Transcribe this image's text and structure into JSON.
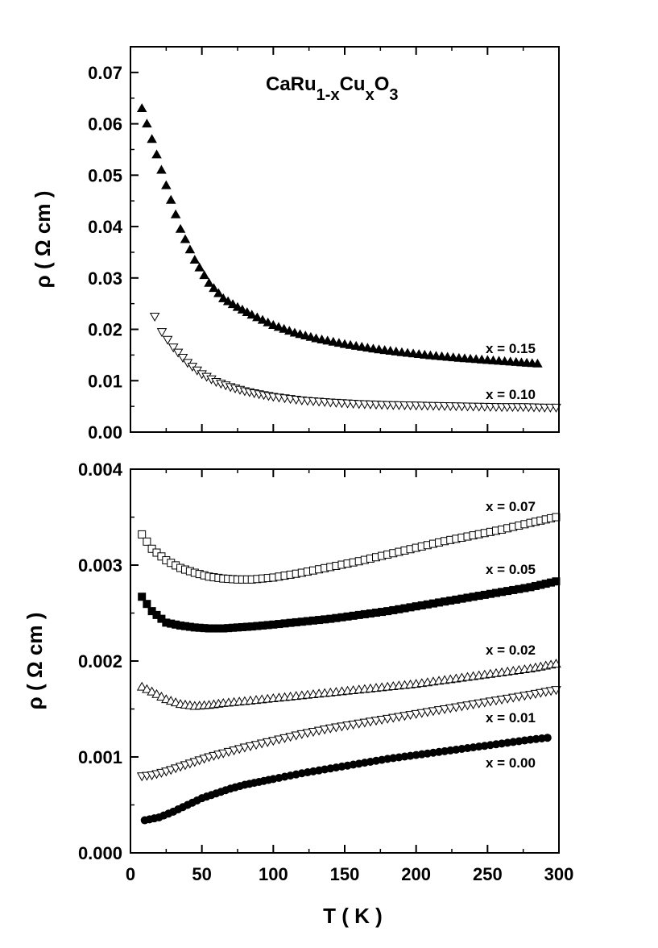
{
  "chart_data": [
    {
      "type": "scatter",
      "id": "top",
      "title": "",
      "xlabel": "",
      "ylabel": "ρ ( Ω cm )",
      "xlim": [
        0,
        300
      ],
      "ylim": [
        0,
        0.075
      ],
      "yticks": [
        "0.00",
        "0.01",
        "0.02",
        "0.03",
        "0.04",
        "0.05",
        "0.06",
        "0.07"
      ],
      "annotation": {
        "base": "CaRu",
        "sub1": "1-x",
        "mid": "Cu",
        "sub2": "x",
        "tail": "O",
        "sub3": "3"
      },
      "grid": false,
      "series": [
        {
          "name": "x = 0.15",
          "marker": "triangle-up",
          "filled": true,
          "x": [
            8,
            15,
            25,
            35,
            45,
            55,
            65,
            75,
            85,
            100,
            115,
            130,
            150,
            170,
            190,
            210,
            230,
            250,
            270,
            285
          ],
          "y": [
            0.063,
            0.057,
            0.048,
            0.0395,
            0.0335,
            0.029,
            0.026,
            0.0243,
            0.0228,
            0.0208,
            0.0193,
            0.0182,
            0.0171,
            0.0162,
            0.0155,
            0.0149,
            0.0144,
            0.014,
            0.0136,
            0.0133
          ]
        },
        {
          "name": "x = 0.10",
          "marker": "triangle-down",
          "filled": false,
          "x": [
            17,
            22,
            30,
            40,
            50,
            60,
            70,
            80,
            90,
            100,
            120,
            140,
            160,
            180,
            200,
            220,
            240,
            260,
            275,
            290,
            298
          ],
          "y": [
            0.0225,
            0.0195,
            0.0165,
            0.0135,
            0.0113,
            0.0098,
            0.0088,
            0.008,
            0.0074,
            0.0069,
            0.0062,
            0.0058,
            0.0055,
            0.0053,
            0.0052,
            0.0051,
            0.005,
            0.0049,
            0.0049,
            0.0048,
            0.0048
          ]
        }
      ]
    },
    {
      "type": "scatter",
      "id": "bottom",
      "title": "",
      "xlabel": "T ( K )",
      "ylabel": "ρ ( Ω cm )",
      "xlim": [
        0,
        300
      ],
      "ylim": [
        0,
        0.004
      ],
      "yticks": [
        "0.000",
        "0.001",
        "0.002",
        "0.003",
        "0.004"
      ],
      "xticks": [
        "0",
        "50",
        "100",
        "150",
        "200",
        "250",
        "300"
      ],
      "grid": false,
      "series": [
        {
          "name": "x = 0.07",
          "marker": "square",
          "filled": false,
          "x": [
            8,
            15,
            25,
            35,
            45,
            55,
            65,
            75,
            85,
            100,
            120,
            140,
            160,
            180,
            200,
            220,
            240,
            260,
            280,
            298
          ],
          "y": [
            0.00332,
            0.00317,
            0.00305,
            0.00297,
            0.00292,
            0.00288,
            0.00286,
            0.00285,
            0.00285,
            0.00287,
            0.00292,
            0.00298,
            0.00304,
            0.00311,
            0.00318,
            0.00325,
            0.00331,
            0.00337,
            0.00344,
            0.0035
          ]
        },
        {
          "name": "x = 0.05",
          "marker": "square",
          "filled": true,
          "x": [
            8,
            15,
            25,
            35,
            45,
            55,
            65,
            75,
            85,
            100,
            120,
            140,
            160,
            180,
            200,
            220,
            240,
            260,
            280,
            298
          ],
          "y": [
            0.00267,
            0.00252,
            0.0024,
            0.00237,
            0.00235,
            0.00234,
            0.00234,
            0.00235,
            0.00236,
            0.00238,
            0.00241,
            0.00244,
            0.00248,
            0.00252,
            0.00257,
            0.00262,
            0.00267,
            0.00272,
            0.00277,
            0.00283
          ]
        },
        {
          "name": "x = 0.02",
          "marker": "triangle-up",
          "filled": false,
          "x": [
            8,
            15,
            25,
            35,
            45,
            55,
            65,
            80,
            100,
            120,
            140,
            160,
            180,
            200,
            220,
            240,
            260,
            280,
            298
          ],
          "y": [
            0.00173,
            0.00168,
            0.0016,
            0.00155,
            0.00153,
            0.00154,
            0.00156,
            0.00158,
            0.00161,
            0.00164,
            0.00167,
            0.0017,
            0.00173,
            0.00176,
            0.0018,
            0.00184,
            0.00188,
            0.00192,
            0.00197
          ]
        },
        {
          "name": "x = 0.01",
          "marker": "triangle-down",
          "filled": false,
          "x": [
            8,
            15,
            25,
            35,
            45,
            55,
            65,
            80,
            100,
            120,
            140,
            160,
            180,
            200,
            220,
            240,
            260,
            280,
            298
          ],
          "y": [
            0.0008,
            0.00081,
            0.00085,
            0.0009,
            0.00095,
            0.001,
            0.00104,
            0.0011,
            0.00117,
            0.00124,
            0.0013,
            0.00135,
            0.0014,
            0.00145,
            0.0015,
            0.00155,
            0.0016,
            0.00165,
            0.0017
          ]
        },
        {
          "name": "x = 0.00",
          "marker": "circle",
          "filled": true,
          "x": [
            10,
            20,
            30,
            40,
            50,
            60,
            70,
            80,
            90,
            100,
            120,
            140,
            160,
            180,
            200,
            220,
            240,
            260,
            280,
            292
          ],
          "y": [
            0.00034,
            0.00037,
            0.00043,
            0.0005,
            0.00057,
            0.00062,
            0.00067,
            0.00071,
            0.00074,
            0.00077,
            0.00083,
            0.00088,
            0.00093,
            0.00098,
            0.00102,
            0.00106,
            0.0011,
            0.00114,
            0.00118,
            0.0012
          ]
        }
      ]
    }
  ]
}
